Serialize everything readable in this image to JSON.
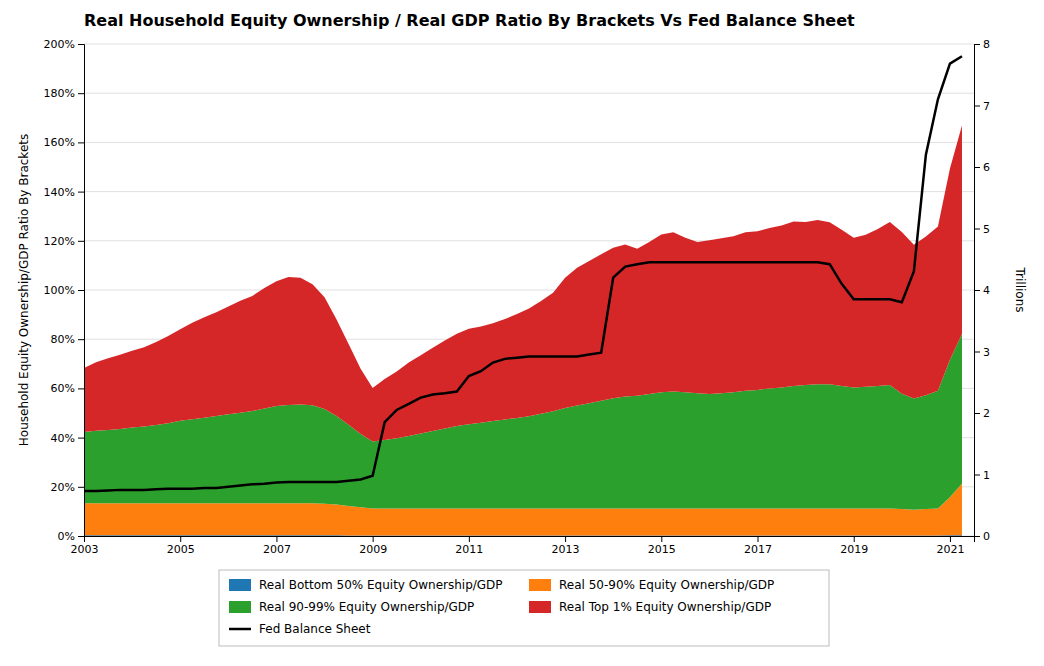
{
  "chart_data": {
    "type": "area",
    "stacked": true,
    "title": "Real Household Equity Ownership / Real GDP Ratio By Brackets Vs Fed Balance Sheet",
    "ylabel": "Household Equity Ownership/GDP Ratio By Brackets",
    "y2label": "Trillions",
    "xlim": [
      2003,
      2021.5
    ],
    "ylim": [
      0,
      2.0
    ],
    "y2lim": [
      0,
      8
    ],
    "xticks": [
      2003,
      2005,
      2007,
      2009,
      2011,
      2013,
      2015,
      2017,
      2019,
      2021
    ],
    "yticks": [
      {
        "value": 0.0,
        "label": "0%"
      },
      {
        "value": 0.2,
        "label": "20%"
      },
      {
        "value": 0.4,
        "label": "40%"
      },
      {
        "value": 0.6,
        "label": "60%"
      },
      {
        "value": 0.8,
        "label": "80%"
      },
      {
        "value": 1.0,
        "label": "100%"
      },
      {
        "value": 1.2,
        "label": "120%"
      },
      {
        "value": 1.4,
        "label": "140%"
      },
      {
        "value": 1.6,
        "label": "160%"
      },
      {
        "value": 1.8,
        "label": "180%"
      },
      {
        "value": 2.0,
        "label": "200%"
      }
    ],
    "y2ticks": [
      0,
      1,
      2,
      3,
      4,
      5,
      6,
      7,
      8
    ],
    "grid": true,
    "legend": "bottom",
    "x": [
      2003.0,
      2003.25,
      2003.5,
      2003.75,
      2004.0,
      2004.25,
      2004.5,
      2004.75,
      2005.0,
      2005.25,
      2005.5,
      2005.75,
      2006.0,
      2006.25,
      2006.5,
      2006.75,
      2007.0,
      2007.25,
      2007.5,
      2007.75,
      2008.0,
      2008.25,
      2008.5,
      2008.75,
      2009.0,
      2009.25,
      2009.5,
      2009.75,
      2010.0,
      2010.25,
      2010.5,
      2010.75,
      2011.0,
      2011.25,
      2011.5,
      2011.75,
      2012.0,
      2012.25,
      2012.5,
      2012.75,
      2013.0,
      2013.25,
      2013.5,
      2013.75,
      2014.0,
      2014.25,
      2014.5,
      2014.75,
      2015.0,
      2015.25,
      2015.5,
      2015.75,
      2016.0,
      2016.25,
      2016.5,
      2016.75,
      2017.0,
      2017.25,
      2017.5,
      2017.75,
      2018.0,
      2018.25,
      2018.5,
      2018.75,
      2019.0,
      2019.25,
      2019.5,
      2019.75,
      2020.0,
      2020.25,
      2020.5,
      2020.75,
      2021.0,
      2021.25
    ],
    "series": [
      {
        "name": "Real Bottom 50% Equity Ownership/GDP",
        "type": "area",
        "values": [
          0.003,
          0.003,
          0.003,
          0.003,
          0.003,
          0.003,
          0.003,
          0.003,
          0.003,
          0.003,
          0.003,
          0.003,
          0.003,
          0.003,
          0.003,
          0.003,
          0.003,
          0.003,
          0.003,
          0.003,
          0.003,
          0.003,
          0.002,
          0.002,
          0.002,
          0.002,
          0.002,
          0.002,
          0.002,
          0.002,
          0.002,
          0.002,
          0.002,
          0.002,
          0.002,
          0.002,
          0.002,
          0.002,
          0.002,
          0.002,
          0.002,
          0.002,
          0.002,
          0.002,
          0.002,
          0.002,
          0.002,
          0.002,
          0.002,
          0.002,
          0.002,
          0.002,
          0.002,
          0.002,
          0.002,
          0.002,
          0.002,
          0.002,
          0.002,
          0.002,
          0.002,
          0.002,
          0.002,
          0.002,
          0.002,
          0.002,
          0.002,
          0.002,
          0.002,
          0.002,
          0.002,
          0.002,
          0.003,
          0.003
        ]
      },
      {
        "name": "Real 50-90% Equity Ownership/GDP",
        "type": "area",
        "values": [
          0.13,
          0.13,
          0.13,
          0.13,
          0.13,
          0.13,
          0.13,
          0.13,
          0.13,
          0.13,
          0.13,
          0.13,
          0.13,
          0.13,
          0.13,
          0.13,
          0.13,
          0.13,
          0.13,
          0.13,
          0.128,
          0.125,
          0.12,
          0.115,
          0.11,
          0.11,
          0.11,
          0.11,
          0.11,
          0.11,
          0.11,
          0.11,
          0.11,
          0.11,
          0.11,
          0.11,
          0.11,
          0.11,
          0.11,
          0.11,
          0.11,
          0.11,
          0.11,
          0.11,
          0.11,
          0.11,
          0.11,
          0.11,
          0.11,
          0.11,
          0.11,
          0.11,
          0.11,
          0.11,
          0.11,
          0.11,
          0.11,
          0.11,
          0.11,
          0.11,
          0.11,
          0.11,
          0.11,
          0.11,
          0.11,
          0.11,
          0.11,
          0.11,
          0.108,
          0.105,
          0.108,
          0.11,
          0.155,
          0.21
        ]
      },
      {
        "name": "Real 90-99% Equity Ownership/GDP",
        "type": "area",
        "values": [
          0.29,
          0.295,
          0.298,
          0.302,
          0.308,
          0.312,
          0.318,
          0.325,
          0.335,
          0.342,
          0.348,
          0.355,
          0.362,
          0.368,
          0.375,
          0.385,
          0.395,
          0.4,
          0.402,
          0.398,
          0.385,
          0.36,
          0.33,
          0.298,
          0.272,
          0.278,
          0.285,
          0.295,
          0.305,
          0.315,
          0.325,
          0.335,
          0.342,
          0.348,
          0.355,
          0.362,
          0.368,
          0.375,
          0.385,
          0.395,
          0.408,
          0.418,
          0.428,
          0.438,
          0.448,
          0.455,
          0.458,
          0.465,
          0.472,
          0.475,
          0.472,
          0.468,
          0.465,
          0.468,
          0.472,
          0.478,
          0.482,
          0.488,
          0.492,
          0.498,
          0.502,
          0.505,
          0.505,
          0.498,
          0.492,
          0.495,
          0.498,
          0.502,
          0.468,
          0.452,
          0.462,
          0.478,
          0.558,
          0.608
        ]
      },
      {
        "name": "Real Top 1% Equity Ownership/GDP",
        "type": "area",
        "values": [
          0.26,
          0.278,
          0.292,
          0.302,
          0.312,
          0.322,
          0.338,
          0.355,
          0.372,
          0.392,
          0.408,
          0.422,
          0.438,
          0.455,
          0.468,
          0.49,
          0.508,
          0.52,
          0.515,
          0.492,
          0.455,
          0.392,
          0.328,
          0.265,
          0.218,
          0.248,
          0.272,
          0.298,
          0.318,
          0.338,
          0.358,
          0.375,
          0.388,
          0.392,
          0.398,
          0.408,
          0.422,
          0.438,
          0.458,
          0.482,
          0.53,
          0.56,
          0.578,
          0.595,
          0.612,
          0.618,
          0.598,
          0.618,
          0.642,
          0.648,
          0.628,
          0.615,
          0.625,
          0.63,
          0.635,
          0.645,
          0.645,
          0.652,
          0.658,
          0.668,
          0.662,
          0.668,
          0.658,
          0.635,
          0.608,
          0.618,
          0.638,
          0.662,
          0.658,
          0.625,
          0.645,
          0.668,
          0.778,
          0.848
        ]
      },
      {
        "name": "Fed Balance Sheet",
        "type": "line",
        "axis": "y2",
        "color": "#000000",
        "values": [
          0.73,
          0.73,
          0.74,
          0.75,
          0.75,
          0.75,
          0.76,
          0.77,
          0.77,
          0.77,
          0.78,
          0.78,
          0.8,
          0.82,
          0.84,
          0.85,
          0.87,
          0.88,
          0.88,
          0.88,
          0.88,
          0.88,
          0.9,
          0.92,
          0.98,
          1.85,
          2.05,
          2.15,
          2.25,
          2.3,
          2.32,
          2.35,
          2.6,
          2.68,
          2.82,
          2.88,
          2.9,
          2.92,
          2.92,
          2.92,
          2.92,
          2.92,
          2.95,
          2.98,
          4.2,
          4.38,
          4.42,
          4.45,
          4.45,
          4.45,
          4.45,
          4.45,
          4.45,
          4.45,
          4.45,
          4.45,
          4.45,
          4.45,
          4.45,
          4.45,
          4.45,
          4.45,
          4.42,
          4.1,
          3.85,
          3.85,
          3.85,
          3.85,
          3.8,
          4.3,
          6.2,
          7.1,
          7.68,
          7.8
        ]
      }
    ]
  }
}
